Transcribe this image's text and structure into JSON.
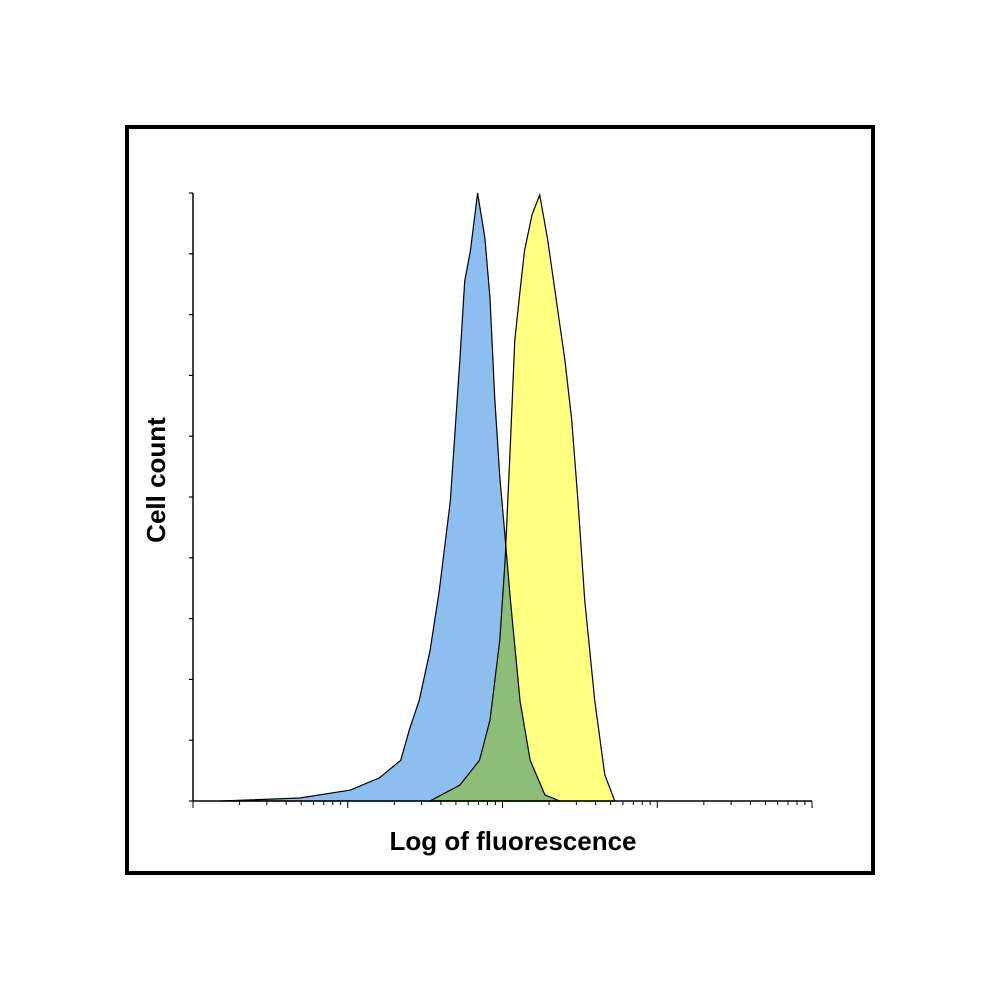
{
  "chart_data": {
    "type": "area",
    "xlabel": "Log of fluorescence",
    "ylabel": "Cell count",
    "xscale": "log",
    "xlim": [
      1,
      10000
    ],
    "ylim": [
      0,
      100
    ],
    "xticks": [
      1,
      2,
      3,
      4,
      5,
      6,
      7,
      8,
      9,
      10,
      20,
      30,
      40,
      50,
      60,
      70,
      80,
      90,
      100,
      200,
      300,
      400,
      500,
      600,
      700,
      800,
      900,
      1000,
      2000,
      3000,
      4000,
      5000,
      6000,
      7000,
      8000,
      9000,
      10000
    ],
    "yticks": [
      0,
      10,
      20,
      30,
      40,
      50,
      60,
      70,
      80,
      90,
      100
    ],
    "series": [
      {
        "color": "#8cbef0",
        "x": [
          1.5,
          4.9,
          10.4,
          16,
          22,
          25,
          29,
          34,
          39,
          46,
          53,
          57,
          62,
          69,
          77,
          83,
          89,
          96,
          104,
          112,
          130,
          151,
          188,
          235
        ],
        "values": [
          0,
          0.5,
          1.8,
          3.8,
          6.7,
          11.7,
          16.6,
          24.7,
          34.5,
          49.3,
          72.4,
          85.5,
          90.5,
          100,
          92.6,
          82.7,
          66.4,
          53.3,
          43.4,
          33.6,
          16.4,
          6.7,
          1.0,
          0
        ]
      },
      {
        "color": "#ffff80",
        "x": [
          34,
          53,
          71,
          83,
          96,
          104,
          112,
          120,
          130,
          139,
          155,
          174,
          196,
          218,
          253,
          280,
          307,
          340,
          394,
          458,
          532
        ],
        "values": [
          0,
          2.6,
          6.7,
          13.3,
          26.5,
          39.6,
          57.7,
          75.8,
          84.0,
          90.6,
          96.4,
          99.7,
          92.3,
          84.0,
          72.5,
          62.7,
          49.5,
          33.1,
          16.6,
          4.3,
          0
        ]
      }
    ]
  }
}
